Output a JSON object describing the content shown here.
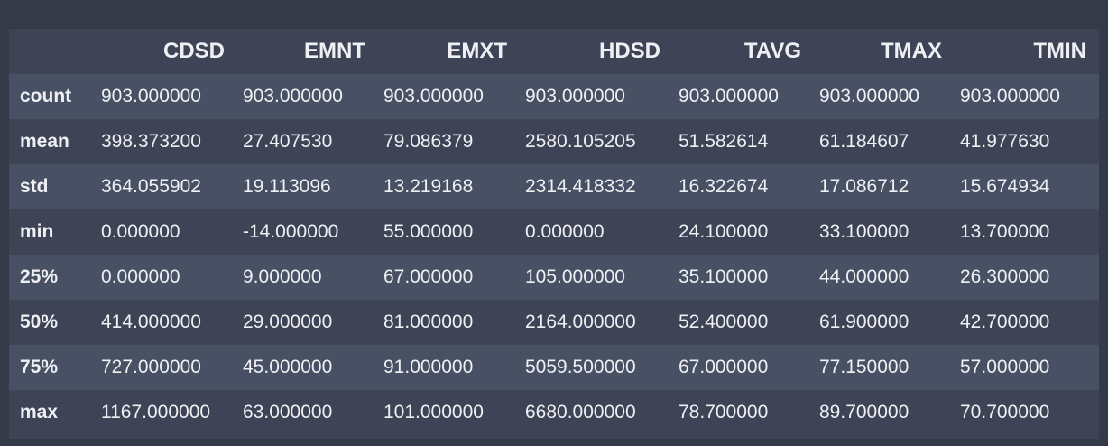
{
  "table": {
    "columns": [
      "CDSD",
      "EMNT",
      "EMXT",
      "HDSD",
      "TAVG",
      "TMAX",
      "TMIN"
    ],
    "rows": [
      {
        "label": "count",
        "values": [
          "903.000000",
          "903.000000",
          "903.000000",
          "903.000000",
          "903.000000",
          "903.000000",
          "903.000000"
        ]
      },
      {
        "label": "mean",
        "values": [
          "398.373200",
          "27.407530",
          "79.086379",
          "2580.105205",
          "51.582614",
          "61.184607",
          "41.977630"
        ]
      },
      {
        "label": "std",
        "values": [
          "364.055902",
          "19.113096",
          "13.219168",
          "2314.418332",
          "16.322674",
          "17.086712",
          "15.674934"
        ]
      },
      {
        "label": "min",
        "values": [
          "0.000000",
          "-14.000000",
          "55.000000",
          "0.000000",
          "24.100000",
          "33.100000",
          "13.700000"
        ]
      },
      {
        "label": "25%",
        "values": [
          "0.000000",
          "9.000000",
          "67.000000",
          "105.000000",
          "35.100000",
          "44.000000",
          "26.300000"
        ]
      },
      {
        "label": "50%",
        "values": [
          "414.000000",
          "29.000000",
          "81.000000",
          "2164.000000",
          "52.400000",
          "61.900000",
          "42.700000"
        ]
      },
      {
        "label": "75%",
        "values": [
          "727.000000",
          "45.000000",
          "91.000000",
          "5059.500000",
          "67.000000",
          "77.150000",
          "57.000000"
        ]
      },
      {
        "label": "max",
        "values": [
          "1167.000000",
          "63.000000",
          "101.000000",
          "6680.000000",
          "78.700000",
          "89.700000",
          "70.700000"
        ]
      }
    ]
  }
}
